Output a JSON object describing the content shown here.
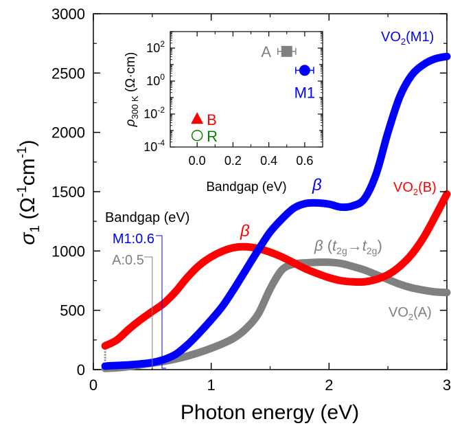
{
  "chart_data": [
    {
      "type": "line",
      "xlabel": "Photon energy (eV)",
      "ylabel": {
        "base": "σ",
        "sub": "1",
        "unit_open": " (Ω",
        "sup1": "-1",
        "unit_mid": "cm",
        "sup2": "-1",
        "unit_close": ")"
      },
      "xlim": [
        0,
        3
      ],
      "ylim": [
        0,
        3000
      ],
      "x_ticks": [
        "0",
        "1",
        "2",
        "3"
      ],
      "x_tick_values": [
        0,
        1,
        2,
        3
      ],
      "y_ticks": [
        "0",
        "500",
        "1000",
        "1500",
        "2000",
        "2500",
        "3000"
      ],
      "y_tick_values": [
        0,
        500,
        1000,
        1500,
        2000,
        2500,
        3000
      ],
      "series": [
        {
          "name": "VO2(M1)",
          "color": "#0000ff",
          "x": [
            0.1,
            0.2,
            0.3,
            0.4,
            0.5,
            0.6,
            0.7,
            0.8,
            0.9,
            1.0,
            1.1,
            1.2,
            1.3,
            1.4,
            1.5,
            1.6,
            1.7,
            1.8,
            1.9,
            2.0,
            2.1,
            2.2,
            2.3,
            2.4,
            2.5,
            2.6,
            2.7,
            2.8,
            2.9,
            3.0
          ],
          "y": [
            30,
            35,
            40,
            48,
            60,
            85,
            130,
            210,
            310,
            420,
            540,
            690,
            850,
            1010,
            1160,
            1270,
            1360,
            1400,
            1405,
            1395,
            1370,
            1380,
            1440,
            1650,
            2000,
            2300,
            2480,
            2570,
            2620,
            2640
          ]
        },
        {
          "name": "VO2(B)",
          "color": "#ff0000",
          "x": [
            0.1,
            0.2,
            0.3,
            0.4,
            0.5,
            0.6,
            0.7,
            0.8,
            0.9,
            1.0,
            1.1,
            1.2,
            1.3,
            1.4,
            1.5,
            1.6,
            1.7,
            1.8,
            1.9,
            2.0,
            2.1,
            2.2,
            2.3,
            2.4,
            2.5,
            2.6,
            2.7,
            2.8,
            2.9,
            3.0
          ],
          "y": [
            200,
            250,
            340,
            420,
            490,
            560,
            660,
            780,
            880,
            950,
            1000,
            1030,
            1035,
            1020,
            990,
            950,
            900,
            850,
            810,
            775,
            750,
            740,
            740,
            760,
            800,
            870,
            970,
            1110,
            1290,
            1480
          ]
        },
        {
          "name": "VO2(A)",
          "color": "#808080",
          "x": [
            0.1,
            0.2,
            0.3,
            0.4,
            0.5,
            0.6,
            0.7,
            0.8,
            0.9,
            1.0,
            1.1,
            1.2,
            1.3,
            1.4,
            1.5,
            1.6,
            1.7,
            1.8,
            1.9,
            2.0,
            2.1,
            2.2,
            2.3,
            2.4,
            2.5,
            2.6,
            2.7,
            2.8,
            2.9,
            3.0
          ],
          "y": [
            10,
            15,
            25,
            40,
            55,
            70,
            90,
            115,
            145,
            180,
            220,
            270,
            350,
            470,
            680,
            840,
            890,
            900,
            905,
            905,
            895,
            870,
            840,
            800,
            760,
            720,
            690,
            670,
            655,
            650
          ]
        }
      ],
      "start_markers": [
        {
          "x": 0.1,
          "y": 200,
          "color": "#ff0000"
        },
        {
          "x": 0.1,
          "y": 30,
          "color": "#0000ff"
        }
      ],
      "series_labels": [
        {
          "text": "VO",
          "sub": "2",
          "tail": "(M1)",
          "color": "#0000ff"
        },
        {
          "text": "VO",
          "sub": "2",
          "tail": "(B)",
          "color": "#ff0000"
        },
        {
          "text": "VO",
          "sub": "2",
          "tail": "(A)",
          "color": "#808080"
        }
      ],
      "annotations": {
        "beta_m1": {
          "text": "β",
          "color": "#0000ff"
        },
        "beta_b": {
          "text": "β",
          "color": "#ff0000"
        },
        "beta_a": {
          "text": "β",
          "open": " (",
          "t1": "t",
          "s1": "2g",
          "arrow": "→",
          "t2": "t",
          "s2": "2g",
          "close": ")",
          "color": "#808080"
        },
        "bandgap_title": "Bandgap (eV)",
        "bandgap_m1": {
          "label": "M1:0.6",
          "value": 0.6,
          "color": "#0000ff"
        },
        "bandgap_a": {
          "label": "A:0.5",
          "value": 0.5,
          "color": "#808080"
        }
      }
    },
    {
      "type": "scatter",
      "xlabel": "Bandgap (eV)",
      "ylabel": {
        "base": "ρ",
        "sub": "300 K",
        "unit": " (Ω·cm)"
      },
      "xlim": [
        -0.15,
        0.7
      ],
      "ylim_log10": [
        -4,
        3
      ],
      "y_scale": "log",
      "x_ticks": [
        "0.0",
        "0.2",
        "0.4",
        "0.6"
      ],
      "x_tick_values": [
        0,
        0.2,
        0.4,
        0.6
      ],
      "y_ticks": [
        {
          "base": "10",
          "exp": "2",
          "log10": 2
        },
        {
          "base": "10",
          "exp": "0",
          "log10": 0
        },
        {
          "base": "10",
          "exp": "-2",
          "log10": -2
        },
        {
          "base": "10",
          "exp": "-4",
          "log10": -4
        }
      ],
      "points": [
        {
          "label": "A",
          "x": 0.5,
          "y_log10": 1.8,
          "marker": "square",
          "color": "#808080",
          "xerr": 0.05
        },
        {
          "label": "M1",
          "x": 0.6,
          "y_log10": 0.65,
          "marker": "circle",
          "color": "#0000ff",
          "xerr": 0.05
        },
        {
          "label": "B",
          "x": 0.0,
          "y_log10": -2.3,
          "marker": "triangle",
          "color": "#ff0000"
        },
        {
          "label": "R",
          "x": 0.0,
          "y_log10": -3.3,
          "marker": "open-circle",
          "color": "#008000"
        }
      ]
    }
  ]
}
